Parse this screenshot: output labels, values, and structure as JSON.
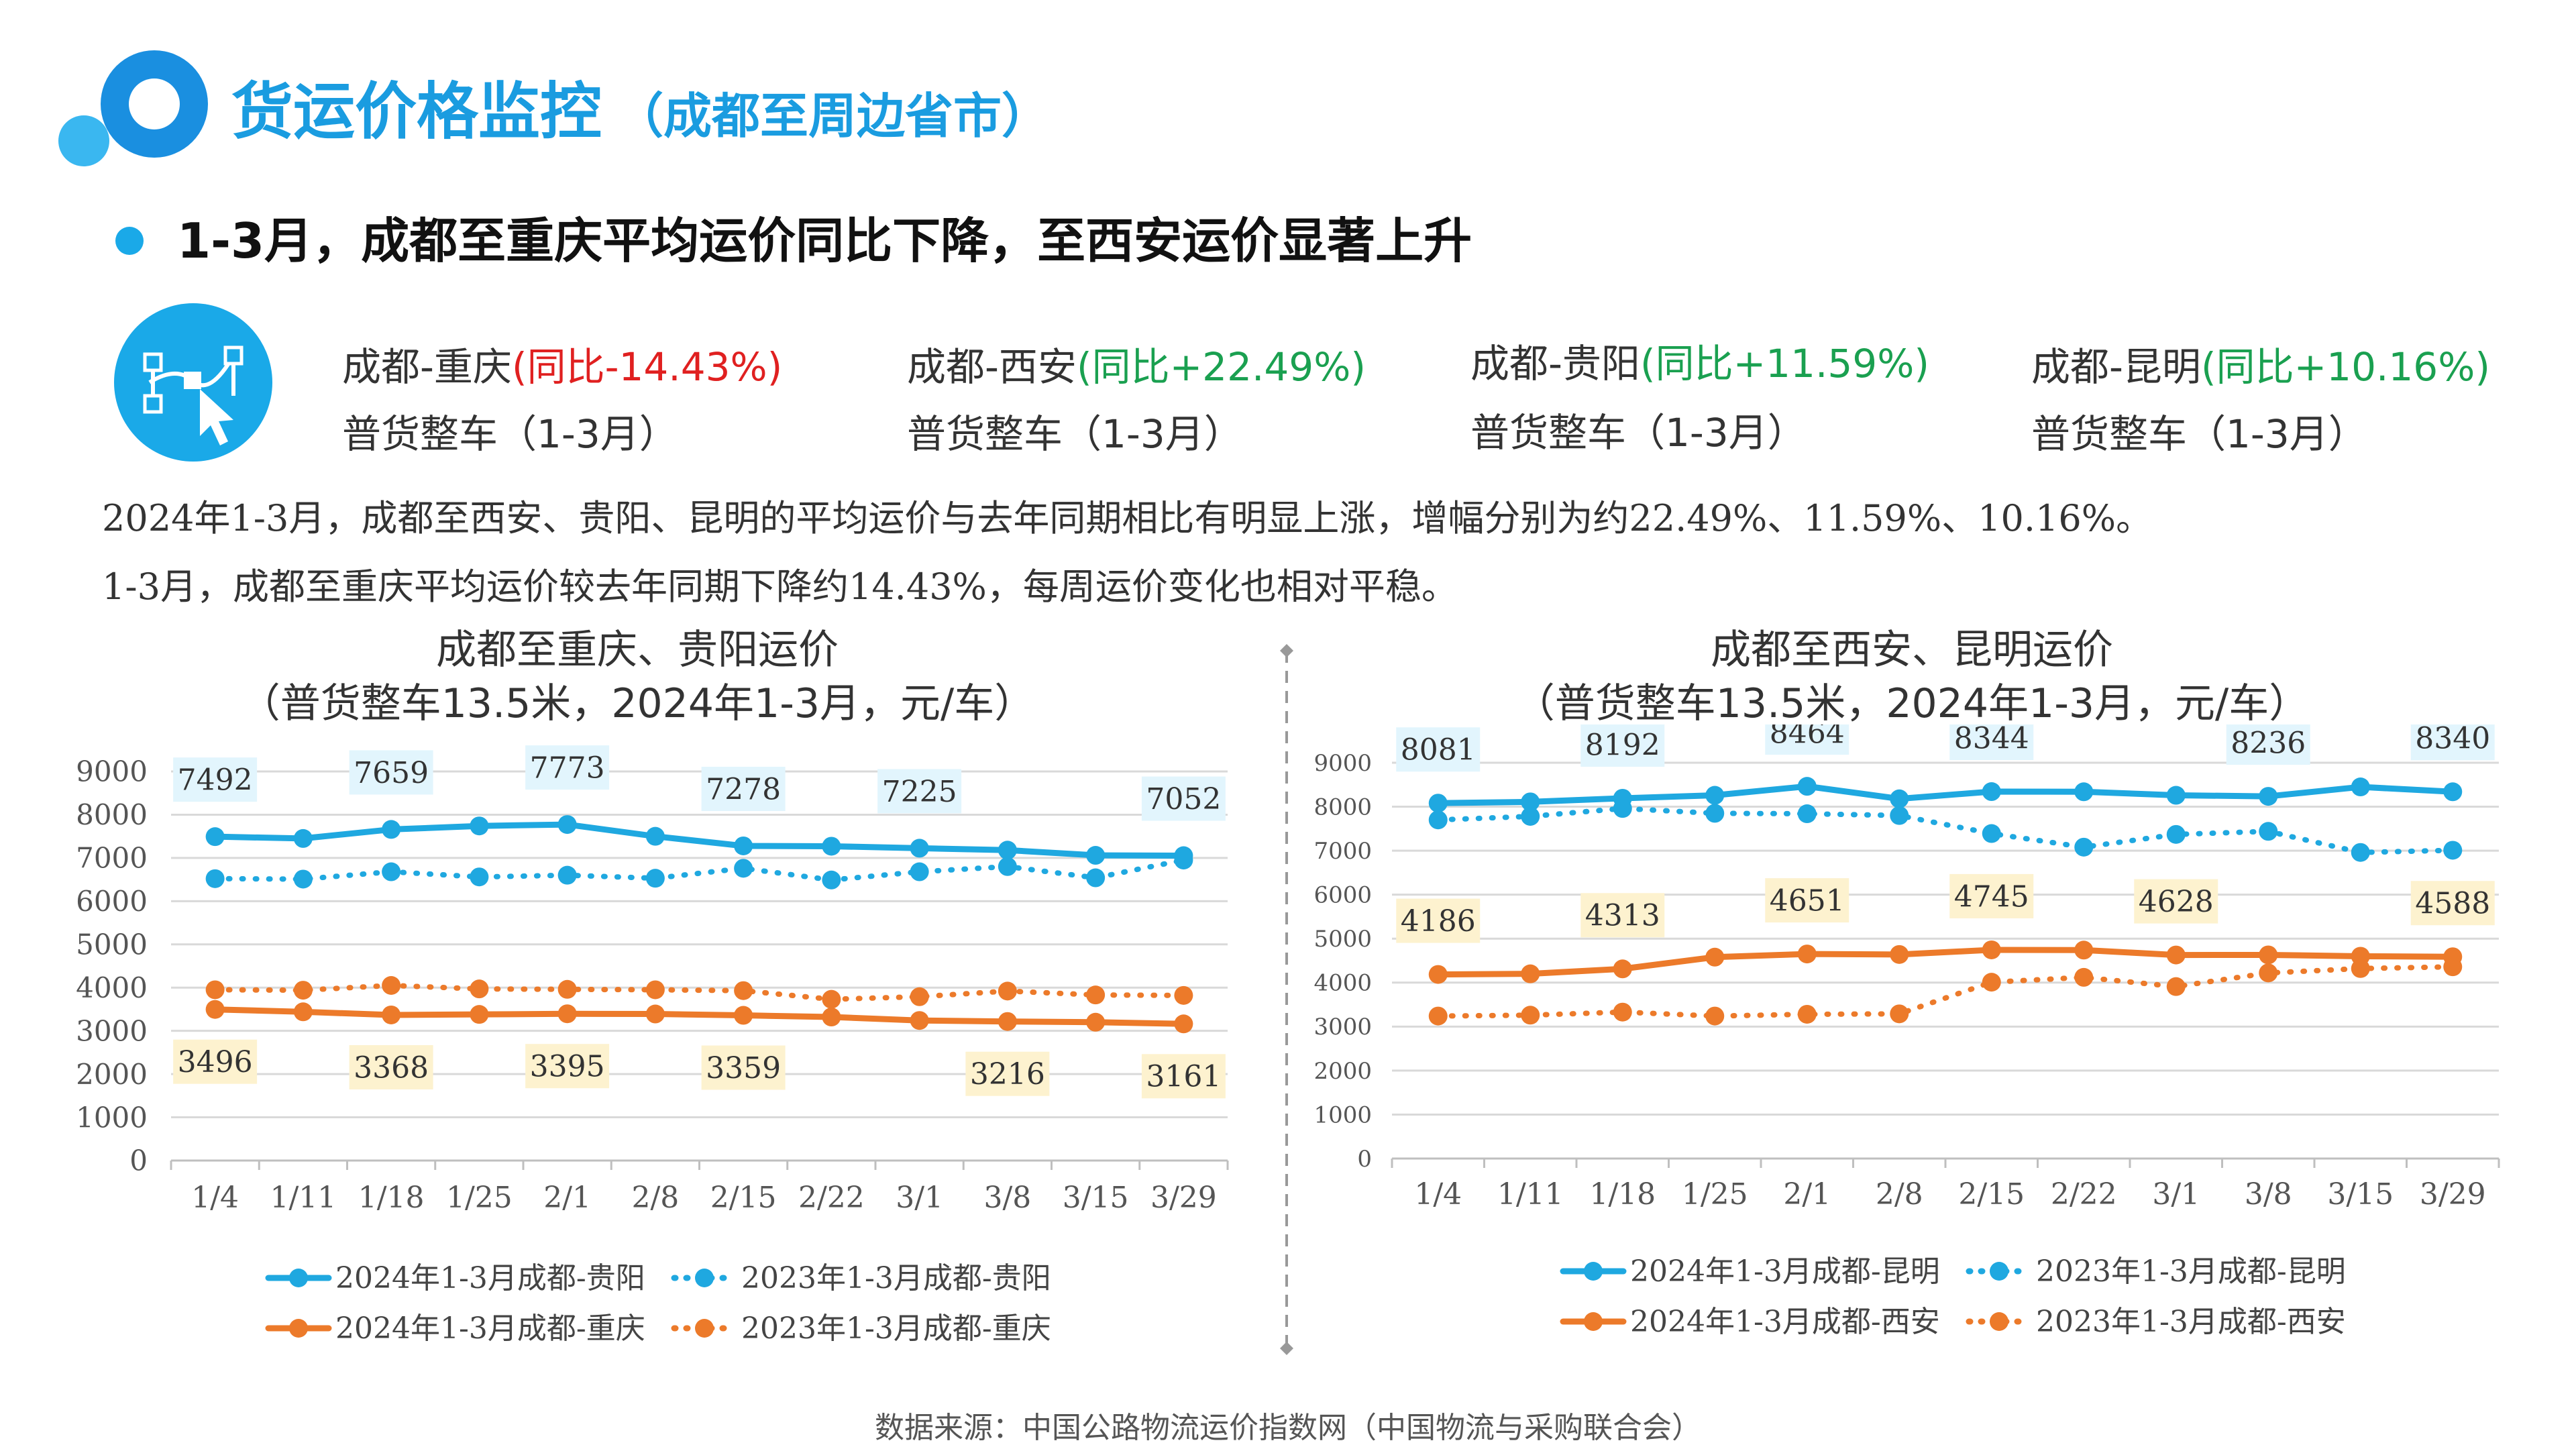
{
  "header": {
    "title": "货运价格监控",
    "subtitle": "（成都至周边省市）",
    "headline": "1-3月，成都至重庆平均运价同比下降，至西安运价显著上升"
  },
  "routes": [
    {
      "name": "成都-重庆",
      "change": "(同比-14.43%)",
      "trend": "neg",
      "type": "普货整车（1-3月）"
    },
    {
      "name": "成都-西安",
      "change": "(同比+22.49%)",
      "trend": "pos",
      "type": "普货整车（1-3月）"
    },
    {
      "name": "成都-贵阳",
      "change": "(同比+11.59%)",
      "trend": "pos",
      "type": "普货整车（1-3月）"
    },
    {
      "name": "成都-昆明",
      "change": "(同比+10.16%)",
      "trend": "pos",
      "type": "普货整车（1-3月）"
    }
  ],
  "paragraph": {
    "line1": "2024年1-3月，成都至西安、贵阳、昆明的平均运价与去年同期相比有明显上涨，增幅分别为约22.49%、11.59%、10.16%。",
    "line2": "1-3月，成都至重庆平均运价较去年同期下降约14.43%，每周运价变化也相对平稳。"
  },
  "colors": {
    "blue": "#1fa8e0",
    "orange": "#ec7a2a",
    "title": "#1a9ce0",
    "neg": "#e02020",
    "pos": "#1aa050"
  },
  "chart_data": [
    {
      "type": "line",
      "title": "成都至重庆、贵阳运价",
      "subtitle": "（普货整车13.5米，2024年1-3月，元/车）",
      "categories": [
        "1/4",
        "1/11",
        "1/18",
        "1/25",
        "2/1",
        "2/8",
        "2/15",
        "2/22",
        "3/1",
        "3/8",
        "3/15",
        "3/29"
      ],
      "ylim": [
        0,
        9000
      ],
      "yticks": [
        0,
        1000,
        2000,
        3000,
        4000,
        5000,
        6000,
        7000,
        8000,
        9000
      ],
      "series": [
        {
          "name": "2024年1-3月成都-贵阳",
          "color": "#1fa8e0",
          "dashed": false,
          "values": [
            7492,
            7450,
            7659,
            7740,
            7773,
            7500,
            7278,
            7270,
            7225,
            7180,
            7060,
            7052
          ],
          "labels": {
            "0": "7492",
            "2": "7659",
            "4": "7773",
            "6": "7278",
            "8": "7225",
            "11": "7052"
          }
        },
        {
          "name": "2023年1-3月成都-贵阳",
          "color": "#1fa8e0",
          "dashed": true,
          "values": [
            6520,
            6510,
            6680,
            6560,
            6600,
            6530,
            6760,
            6490,
            6680,
            6800,
            6540,
            6950
          ]
        },
        {
          "name": "2024年1-3月成都-重庆",
          "color": "#ec7a2a",
          "dashed": false,
          "values": [
            3496,
            3440,
            3368,
            3380,
            3395,
            3390,
            3359,
            3320,
            3240,
            3216,
            3200,
            3161
          ],
          "labels": {
            "0": "3496",
            "2": "3368",
            "4": "3395",
            "6": "3359",
            "9": "3216",
            "11": "3161"
          }
        },
        {
          "name": "2023年1-3月成都-重庆",
          "color": "#ec7a2a",
          "dashed": true,
          "values": [
            3950,
            3940,
            4050,
            3970,
            3960,
            3950,
            3930,
            3730,
            3790,
            3920,
            3830,
            3820
          ]
        }
      ],
      "legend": "bottom"
    },
    {
      "type": "line",
      "title": "成都至西安、昆明运价",
      "subtitle": "（普货整车13.5米，2024年1-3月，元/车）",
      "categories": [
        "1/4",
        "1/11",
        "1/18",
        "1/25",
        "2/1",
        "2/8",
        "2/15",
        "2/22",
        "3/1",
        "3/8",
        "3/15",
        "3/29"
      ],
      "ylim": [
        0,
        9000
      ],
      "yticks": [
        0,
        1000,
        2000,
        3000,
        4000,
        5000,
        6000,
        7000,
        8000,
        9000
      ],
      "series": [
        {
          "name": "2024年1-3月成都-昆明",
          "color": "#1fa8e0",
          "dashed": false,
          "values": [
            8081,
            8110,
            8192,
            8260,
            8464,
            8180,
            8344,
            8340,
            8260,
            8236,
            8450,
            8340
          ],
          "labels": {
            "0": "8081",
            "2": "8192",
            "4": "8464",
            "6": "8344",
            "9": "8236",
            "11": "8340"
          }
        },
        {
          "name": "2023年1-3月成都-昆明",
          "color": "#1fa8e0",
          "dashed": true,
          "values": [
            7700,
            7780,
            7960,
            7850,
            7840,
            7800,
            7390,
            7080,
            7370,
            7440,
            6960,
            7010
          ]
        },
        {
          "name": "2024年1-3月成都-西安",
          "color": "#ec7a2a",
          "dashed": false,
          "values": [
            4186,
            4200,
            4313,
            4580,
            4651,
            4640,
            4745,
            4740,
            4628,
            4630,
            4600,
            4588
          ],
          "labels": {
            "0": "4186",
            "2": "4313",
            "4": "4651",
            "6": "4745",
            "8": "4628",
            "11": "4588"
          }
        },
        {
          "name": "2023年1-3月成都-西安",
          "color": "#ec7a2a",
          "dashed": true,
          "values": [
            3240,
            3260,
            3330,
            3240,
            3280,
            3290,
            4010,
            4120,
            3910,
            4220,
            4320,
            4360
          ]
        }
      ],
      "legend": "bottom"
    }
  ],
  "footer": {
    "source": "数据来源：中国公路物流运价指数网（中国物流与采购联合会）"
  }
}
